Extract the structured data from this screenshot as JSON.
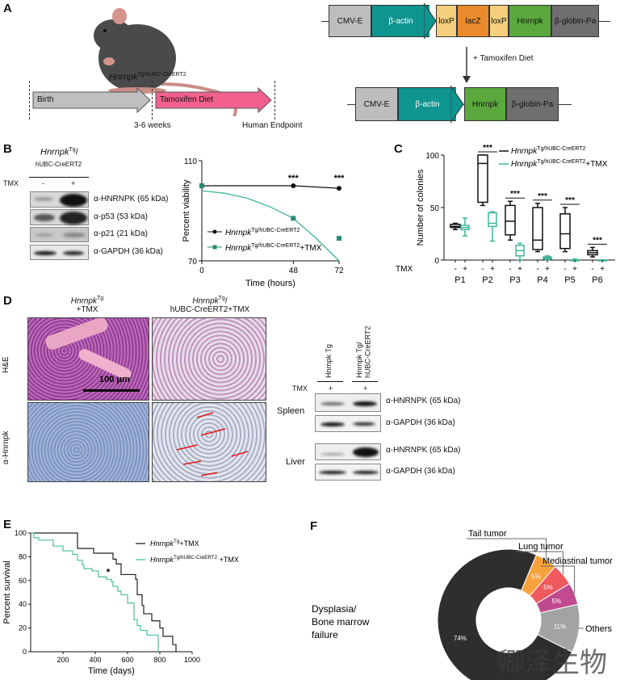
{
  "panel_labels": [
    "A",
    "B",
    "C",
    "D",
    "E",
    "F"
  ],
  "panelA": {
    "mouse_genotype_italic": "Hnrnpk",
    "mouse_genotype_sup": "Tg/hUBC-CreERT2",
    "timeline": {
      "birth": "Birth",
      "tamoxifen": "Tamoxifen Diet",
      "weeks": "3-6 weeks",
      "endpoint": "Human Endpoint"
    },
    "construct_before": [
      "CMV-E",
      "β-actin",
      "loxP",
      "lacZ",
      "loxP",
      "Hnrnpk",
      "β-globin-Pa"
    ],
    "arrow_label": "+ Tamoxifen Diet",
    "construct_after": [
      "CMV-E",
      "β-actin",
      "Hnrnpk",
      "β-globin-Pa"
    ],
    "colors": {
      "cmv": "#bdbdbd",
      "actin": "#0e9590",
      "loxp": "#f5cf7c",
      "lacz": "#ea8a2c",
      "hnrnpk": "#5aa83e",
      "globin": "#6f6f6f",
      "birth": "#bfbfbf",
      "tamoxifen": "#f2608e"
    }
  },
  "panelB": {
    "blot_header_italic": "Hnrnpk",
    "blot_header_sup": "Tg",
    "blot_header_sub": "hUBC-CreERT2",
    "tmx_label": "TMX",
    "lanes": [
      "-",
      "+"
    ],
    "bands": [
      "α-HNRNPK (65 kDa)",
      "α-p53 (53 kDa)",
      "α-p21 (21 kDa)",
      "α-GAPDH (36 kDa)"
    ]
  },
  "panelD": {
    "col1_italic": "Hnrnpk",
    "col1_sup": "Tg",
    "col1_sub": "+TMX",
    "col2_italic": "Hnrnpk",
    "col2_sup": "Tg",
    "col2_sub": "hUBC-CreERT2+TMX",
    "row_labels": [
      "H&E",
      "α-Hnrnpk"
    ],
    "scale_bar": "100 μm",
    "blot": {
      "lane1": "Hnrnpk Tg",
      "lane2": "Hnrnpk Tg/ hUBC-CreERT2",
      "tmx_label": "TMX",
      "lanes": [
        "+",
        "+"
      ],
      "tissues": [
        "Spleen",
        "Liver"
      ],
      "bands": [
        "α-HNRNPK (65 kDa)",
        "α-GAPDH (36 kDa)",
        "α-HNRNPK (65 kDa)",
        "α-GAPDH (36 kDa)"
      ]
    }
  },
  "watermark": "卿泽生物",
  "chart_data": [
    {
      "panel": "B",
      "type": "line",
      "xlabel": "Time (hours)",
      "ylabel": "Percent viability",
      "xlim": [
        0,
        72
      ],
      "ylim": [
        70,
        110
      ],
      "xticks": [
        0,
        48,
        72
      ],
      "yticks": [
        70,
        110
      ],
      "series": [
        {
          "name": "Hnrnpk Tg/hUBC-CreERT2",
          "name_italic": "Hnrnpk",
          "name_sup": "Tg/hUBC-CreERT2",
          "name_suffix": "",
          "color": "#111111",
          "x": [
            0,
            48,
            72
          ],
          "y": [
            100,
            100,
            99
          ]
        },
        {
          "name": "Hnrnpk Tg/hUBC-CreERT2+TMX",
          "name_italic": "Hnrnpk",
          "name_sup": "Tg/hUBC-CreERT2",
          "name_suffix": "+TMX",
          "color": "#2a8a75",
          "x": [
            0,
            48,
            72
          ],
          "y": [
            100,
            87,
            79
          ],
          "fit": [
            [
              0,
              98
            ],
            [
              12,
              97
            ],
            [
              24,
              95
            ],
            [
              36,
              91.5
            ],
            [
              48,
              87
            ],
            [
              60,
              79
            ],
            [
              72,
              70
            ]
          ]
        }
      ],
      "annotations": [
        {
          "x": 48,
          "text": "***"
        },
        {
          "x": 72,
          "text": "***"
        }
      ],
      "legend": "bottom-left"
    },
    {
      "panel": "C",
      "type": "box",
      "ylabel": "Number of colonies",
      "ylim": [
        0,
        100
      ],
      "yticks": [
        0,
        50,
        100
      ],
      "categories": [
        "P1",
        "P2",
        "P3",
        "P4",
        "P5",
        "P6"
      ],
      "tmx_label": "TMX",
      "tmx_marks": [
        "-",
        "+"
      ],
      "series": [
        {
          "name": "Hnrnpk Tg/hUBC-CreERT2",
          "name_italic": "Hnrnpk",
          "name_sup": "Tg/hUBC-CreERT2",
          "name_suffix": "",
          "color": "#111111",
          "boxes": [
            [
              29,
              31,
              32,
              34,
              35
            ],
            [
              52,
              55,
              92,
              100,
              100
            ],
            [
              19,
              24,
              37,
              52,
              56
            ],
            [
              8,
              10,
              19,
              50,
              54
            ],
            [
              8,
              11,
              25,
              44,
              50
            ],
            [
              3,
              5,
              7,
              9,
              12
            ]
          ]
        },
        {
          "name": "Hnrnpk Tg/hUBC-CreERT2+TMX",
          "name_italic": "Hnrnpk",
          "name_sup": "Tg/hUBC-CreERT2",
          "name_suffix": "+TMX",
          "color": "#3fb596",
          "boxes": [
            [
              23,
              29,
              31,
              33,
              40
            ],
            [
              18,
              32,
              35,
              45,
              46
            ],
            [
              0,
              4,
              9,
              14,
              16
            ],
            [
              0,
              1,
              2,
              3,
              4
            ],
            [
              0,
              0,
              0,
              0,
              1
            ],
            [
              0,
              0,
              0,
              0,
              0
            ]
          ]
        }
      ],
      "significance": [
        null,
        "***",
        "***",
        "***",
        "***",
        "***"
      ],
      "legend": "top-right"
    },
    {
      "panel": "E",
      "type": "line",
      "xlabel": "Time (days)",
      "ylabel": "Percent survival",
      "xlim": [
        0,
        1000
      ],
      "ylim": [
        0,
        100
      ],
      "xticks": [
        200,
        400,
        600,
        800,
        1000
      ],
      "yticks": [
        0,
        20,
        40,
        60,
        80,
        100
      ],
      "series": [
        {
          "name": "Hnrnpk Tg+TMX",
          "name_italic": "Hnrnpk",
          "name_sup": "Tg",
          "name_suffix": "+TMX",
          "color": "#222222",
          "points": [
            [
              0,
              100
            ],
            [
              260,
              100
            ],
            [
              290,
              87
            ],
            [
              390,
              83
            ],
            [
              510,
              78
            ],
            [
              530,
              74
            ],
            [
              560,
              65
            ],
            [
              640,
              65
            ],
            [
              650,
              61
            ],
            [
              660,
              48
            ],
            [
              690,
              39
            ],
            [
              700,
              32
            ],
            [
              750,
              26
            ],
            [
              800,
              20
            ],
            [
              820,
              13
            ],
            [
              880,
              6
            ],
            [
              900,
              0
            ]
          ]
        },
        {
          "name": "Hnrnpk Tg/hUBC-CreERT2 +TMX",
          "name_italic": "Hnrnpk",
          "name_sup": "Tg/hUBC-CreERT2",
          "name_suffix": " +TMX",
          "color": "#4dbf9f",
          "points": [
            [
              0,
              100
            ],
            [
              20,
              96
            ],
            [
              50,
              94
            ],
            [
              140,
              89
            ],
            [
              200,
              85
            ],
            [
              260,
              82
            ],
            [
              290,
              77
            ],
            [
              320,
              73
            ],
            [
              330,
              70
            ],
            [
              380,
              68
            ],
            [
              420,
              63
            ],
            [
              470,
              61
            ],
            [
              500,
              59
            ],
            [
              510,
              55
            ],
            [
              540,
              51
            ],
            [
              560,
              48
            ],
            [
              600,
              41
            ],
            [
              630,
              41
            ],
            [
              640,
              27
            ],
            [
              660,
              22
            ],
            [
              680,
              18
            ],
            [
              720,
              14
            ],
            [
              790,
              0
            ]
          ]
        }
      ],
      "annotations": [
        {
          "x": 480,
          "y": 67,
          "text": "*"
        }
      ],
      "legend": "top-right"
    },
    {
      "panel": "F",
      "type": "pie",
      "donut": true,
      "slices": [
        {
          "label": "Tail tumor",
          "value": 5,
          "color": "#f7a23c"
        },
        {
          "label": "Lung tumor",
          "value": 5,
          "color": "#ef5a5e"
        },
        {
          "label": "Mediastinal tumor",
          "value": 5,
          "color": "#c14a8e"
        },
        {
          "label": "Others",
          "value": 11,
          "color": "#a3a3a3"
        },
        {
          "label": "Dysplasia/ Bone marrow failure",
          "value": 74,
          "color": "#2e2e2e"
        }
      ],
      "value_labels": [
        "5%",
        "5%",
        "5%",
        "11%",
        "74%"
      ],
      "dysplasia_lines": [
        "Dysplasia/",
        "Bone marrow",
        "failure"
      ]
    }
  ]
}
